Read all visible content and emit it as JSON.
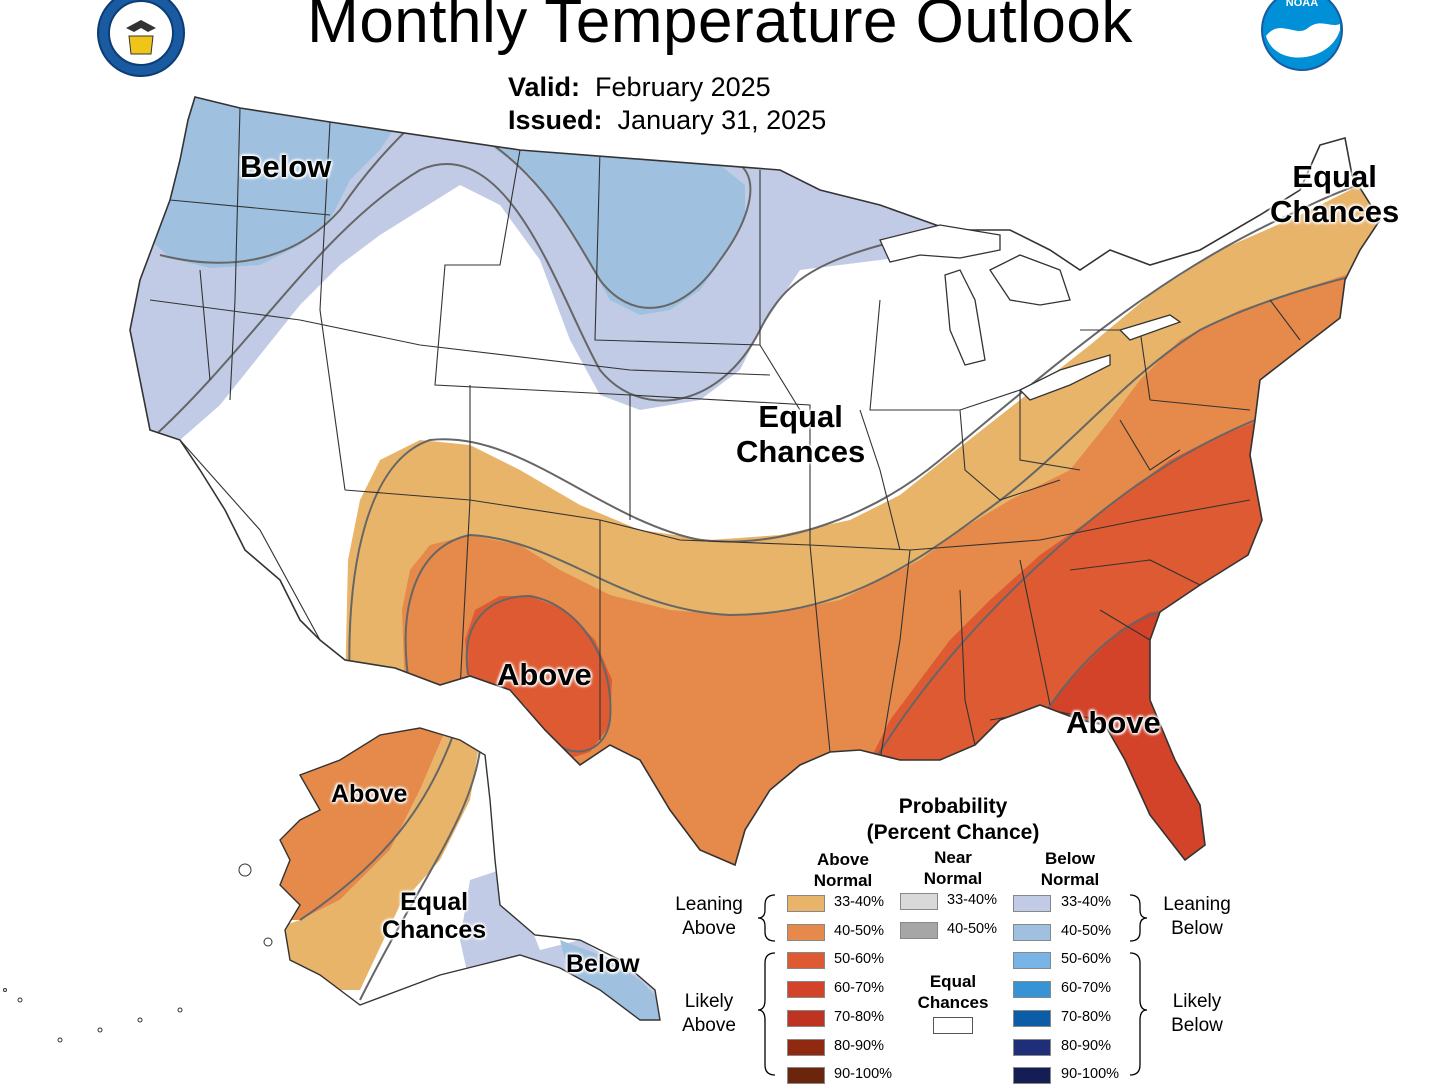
{
  "header": {
    "title": "Monthly Temperature Outlook",
    "valid_label": "Valid:",
    "valid_value": "February 2025",
    "issued_label": "Issued:",
    "issued_value": "January 31, 2025",
    "logos": [
      "doc-seal-icon",
      "noaa-logo-icon"
    ],
    "noaa_logo_text": "NOAA"
  },
  "map_labels": {
    "below_nw": "Below",
    "equal_center_1": "Equal",
    "equal_center_2": "Chances",
    "equal_ne_1": "Equal",
    "equal_ne_2": "Chances",
    "above_sw": "Above",
    "above_se": "Above",
    "ak_above": "Above",
    "ak_equal_1": "Equal",
    "ak_equal_2": "Chances",
    "ak_below": "Below"
  },
  "legend": {
    "title_1": "Probability",
    "title_2": "(Percent Chance)",
    "above_head_1": "Above",
    "above_head_2": "Normal",
    "near_head_1": "Near",
    "near_head_2": "Normal",
    "below_head_1": "Below",
    "below_head_2": "Normal",
    "leaning_above_1": "Leaning",
    "leaning_above_2": "Above",
    "likely_above_1": "Likely",
    "likely_above_2": "Above",
    "leaning_below_1": "Leaning",
    "leaning_below_2": "Below",
    "likely_below_1": "Likely",
    "likely_below_2": "Below",
    "equal_1": "Equal",
    "equal_2": "Chances",
    "above": [
      {
        "label": "33-40%",
        "color": "#e8b46a"
      },
      {
        "label": "40-50%",
        "color": "#e58a4a"
      },
      {
        "label": "50-60%",
        "color": "#de5a32"
      },
      {
        "label": "60-70%",
        "color": "#d2432a"
      },
      {
        "label": "70-80%",
        "color": "#bf3420"
      },
      {
        "label": "80-90%",
        "color": "#8f2a10"
      },
      {
        "label": "90-100%",
        "color": "#6a250c"
      }
    ],
    "near": [
      {
        "label": "33-40%",
        "color": "#d9d9d9"
      },
      {
        "label": "40-50%",
        "color": "#a6a6a6"
      }
    ],
    "below": [
      {
        "label": "33-40%",
        "color": "#c1cbe6"
      },
      {
        "label": "40-50%",
        "color": "#9fc1df"
      },
      {
        "label": "50-60%",
        "color": "#78b4e6"
      },
      {
        "label": "60-70%",
        "color": "#3593d6"
      },
      {
        "label": "70-80%",
        "color": "#0b5da8"
      },
      {
        "label": "80-90%",
        "color": "#1f2e78"
      },
      {
        "label": "90-100%",
        "color": "#141e55"
      }
    ],
    "equal_color": "#ffffff"
  }
}
